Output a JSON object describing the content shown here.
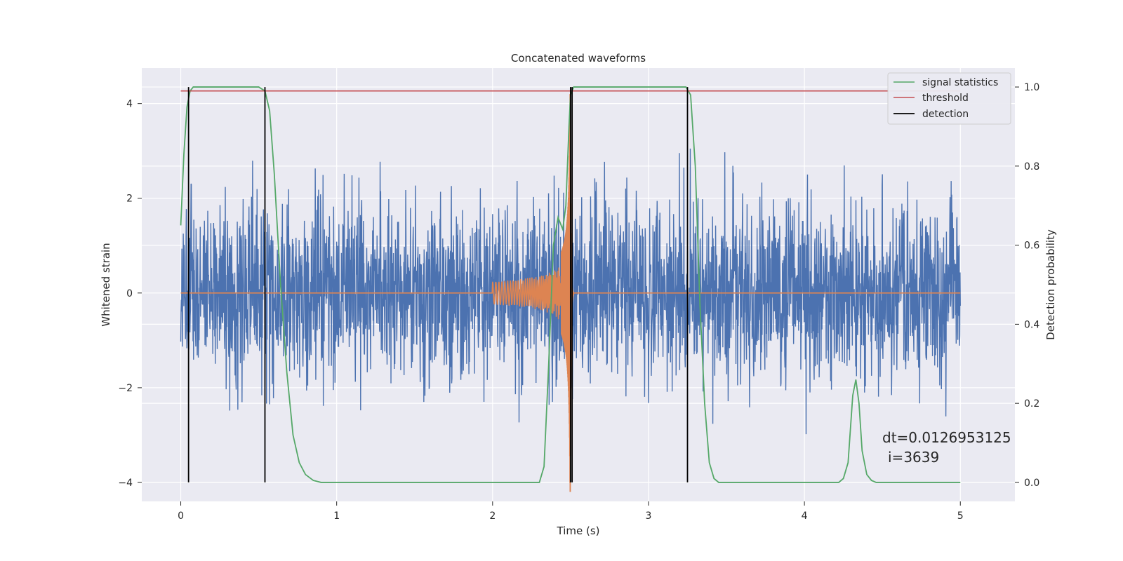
{
  "chart_data": {
    "type": "line",
    "title": "Concatenated waveforms",
    "xlabel": "Time (s)",
    "ylabel": "Whitened strain",
    "y2label": "Detection probability",
    "xlim": [
      -0.25,
      5.35
    ],
    "ylim": [
      -4.4,
      4.75
    ],
    "y2lim": [
      -0.048,
      1.048
    ],
    "x_ticks": [
      0,
      1,
      2,
      3,
      4,
      5
    ],
    "y_ticks": [
      -4,
      -2,
      0,
      2,
      4
    ],
    "y2_ticks": [
      0.0,
      0.2,
      0.4,
      0.6,
      0.8,
      1.0
    ],
    "y_tick_labels": [
      "−4",
      "−2",
      "0",
      "2",
      "4"
    ],
    "y2_tick_labels": [
      "0.0",
      "0.2",
      "0.4",
      "0.6",
      "0.8",
      "1.0"
    ],
    "grid": true,
    "legend_position": "top-right",
    "colors": {
      "strain": "#4c72b0",
      "waveform": "#dd8452",
      "signal": "#55a868",
      "threshold": "#c44e52",
      "detection": "#000000",
      "plot_bg": "#eaeaf2",
      "grid": "#ffffff"
    },
    "strain_noise": {
      "name": "",
      "x_range": [
        0,
        5
      ],
      "typical_range": [
        -1.5,
        1.5
      ],
      "peak_range": [
        -3.6,
        3.3
      ]
    },
    "injected_waveform": {
      "name": "",
      "x_range": [
        2.0,
        2.52
      ],
      "merger_time": 2.5,
      "peak_amplitude": 4.2
    },
    "signal_statistics": {
      "name": "signal statistics",
      "axis": "right",
      "points": [
        [
          0,
          0.65
        ],
        [
          0.02,
          0.83
        ],
        [
          0.04,
          0.95
        ],
        [
          0.06,
          0.99
        ],
        [
          0.08,
          1.0
        ],
        [
          0.5,
          1.0
        ],
        [
          0.54,
          0.99
        ],
        [
          0.57,
          0.94
        ],
        [
          0.6,
          0.78
        ],
        [
          0.64,
          0.5
        ],
        [
          0.68,
          0.28
        ],
        [
          0.72,
          0.12
        ],
        [
          0.76,
          0.05
        ],
        [
          0.8,
          0.02
        ],
        [
          0.85,
          0.005
        ],
        [
          0.9,
          0.0
        ],
        [
          2.3,
          0.0
        ],
        [
          2.33,
          0.04
        ],
        [
          2.36,
          0.3
        ],
        [
          2.39,
          0.6
        ],
        [
          2.42,
          0.67
        ],
        [
          2.45,
          0.64
        ],
        [
          2.47,
          0.7
        ],
        [
          2.49,
          0.9
        ],
        [
          2.5,
          0.98
        ],
        [
          2.52,
          1.0
        ],
        [
          3.24,
          1.0
        ],
        [
          3.27,
          0.98
        ],
        [
          3.3,
          0.8
        ],
        [
          3.33,
          0.45
        ],
        [
          3.36,
          0.2
        ],
        [
          3.39,
          0.05
        ],
        [
          3.42,
          0.01
        ],
        [
          3.45,
          0.0
        ],
        [
          4.22,
          0.0
        ],
        [
          4.25,
          0.01
        ],
        [
          4.28,
          0.05
        ],
        [
          4.31,
          0.22
        ],
        [
          4.33,
          0.26
        ],
        [
          4.35,
          0.2
        ],
        [
          4.37,
          0.08
        ],
        [
          4.4,
          0.02
        ],
        [
          4.43,
          0.005
        ],
        [
          4.46,
          0.0
        ],
        [
          5.0,
          0.0
        ]
      ]
    },
    "threshold": {
      "name": "threshold",
      "axis": "right",
      "value": 0.99,
      "x_range": [
        0,
        5
      ]
    },
    "detection": {
      "name": "detection",
      "axis": "right",
      "times": [
        0.05,
        0.54,
        2.5,
        2.51,
        3.25
      ],
      "y_range": [
        0,
        1.0
      ]
    },
    "legend": [
      "signal statistics",
      "threshold",
      "detection"
    ],
    "annotations": {
      "dt_text": "dt=0.0126953125",
      "i_text": "i=3639"
    }
  }
}
